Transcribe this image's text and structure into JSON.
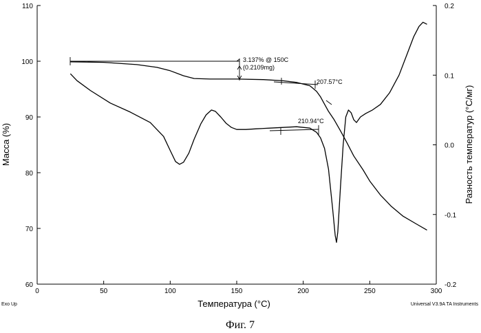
{
  "figure": {
    "caption": "Фиг. 7",
    "footer_left": "Exo Up",
    "footer_right": "Universal V3.9A TA Instruments"
  },
  "chart_data": {
    "type": "line",
    "xlabel": "Температура (°C)",
    "ylabel": "Масса (%)",
    "y2label": "Разность температур (°C/мг)",
    "xlim": [
      0,
      300
    ],
    "ylim": [
      60,
      110
    ],
    "y2lim": [
      -0.2,
      0.2
    ],
    "x_ticks": [
      "0",
      "50",
      "100",
      "150",
      "200",
      "250",
      "300"
    ],
    "y_ticks": [
      "60",
      "70",
      "80",
      "90",
      "100",
      "110"
    ],
    "y2_ticks": [
      "-0.2",
      "-0.1",
      "0.0",
      "0.1",
      "0.2"
    ],
    "grid": false,
    "series": [
      {
        "axis": "left",
        "points": [
          [
            25,
            99.9
          ],
          [
            50,
            99.8
          ],
          [
            75,
            99.4
          ],
          [
            90,
            98.9
          ],
          [
            100,
            98.3
          ],
          [
            110,
            97.4
          ],
          [
            118,
            96.9
          ],
          [
            130,
            96.8
          ],
          [
            150,
            96.8
          ],
          [
            170,
            96.7
          ],
          [
            185,
            96.5
          ],
          [
            195,
            96.2
          ],
          [
            205,
            95.6
          ],
          [
            210,
            94.6
          ],
          [
            213,
            93.6
          ],
          [
            216,
            92.3
          ],
          [
            219,
            91.0
          ],
          [
            223,
            89.6
          ],
          [
            228,
            87.5
          ],
          [
            233,
            85.3
          ],
          [
            238,
            83.0
          ],
          [
            245,
            80.5
          ],
          [
            250,
            78.5
          ],
          [
            258,
            76.0
          ],
          [
            266,
            74.0
          ],
          [
            275,
            72.2
          ],
          [
            285,
            70.8
          ],
          [
            293,
            69.7
          ]
        ]
      },
      {
        "axis": "right",
        "points": [
          [
            25,
            0.102
          ],
          [
            30,
            0.092
          ],
          [
            40,
            0.078
          ],
          [
            55,
            0.06
          ],
          [
            70,
            0.047
          ],
          [
            85,
            0.032
          ],
          [
            95,
            0.012
          ],
          [
            100,
            -0.008
          ],
          [
            104,
            -0.024
          ],
          [
            107,
            -0.028
          ],
          [
            110,
            -0.025
          ],
          [
            114,
            -0.012
          ],
          [
            118,
            0.008
          ],
          [
            123,
            0.03
          ],
          [
            127,
            0.043
          ],
          [
            131,
            0.05
          ],
          [
            134,
            0.048
          ],
          [
            138,
            0.04
          ],
          [
            142,
            0.031
          ],
          [
            146,
            0.025
          ],
          [
            150,
            0.022
          ],
          [
            157,
            0.022
          ],
          [
            165,
            0.023
          ],
          [
            175,
            0.024
          ],
          [
            185,
            0.025
          ],
          [
            195,
            0.026
          ],
          [
            205,
            0.024
          ],
          [
            210,
            0.018
          ],
          [
            213,
            0.01
          ],
          [
            216,
            -0.005
          ],
          [
            219,
            -0.035
          ],
          [
            222,
            -0.09
          ],
          [
            224,
            -0.13
          ],
          [
            225,
            -0.14
          ],
          [
            226,
            -0.125
          ],
          [
            228,
            -0.06
          ],
          [
            230,
            0.0
          ],
          [
            232,
            0.04
          ],
          [
            234,
            0.05
          ],
          [
            236,
            0.046
          ],
          [
            238,
            0.036
          ],
          [
            240,
            0.032
          ],
          [
            243,
            0.04
          ],
          [
            247,
            0.045
          ],
          [
            252,
            0.05
          ],
          [
            258,
            0.058
          ],
          [
            265,
            0.075
          ],
          [
            272,
            0.1
          ],
          [
            278,
            0.13
          ],
          [
            283,
            0.155
          ],
          [
            287,
            0.17
          ],
          [
            290,
            0.176
          ],
          [
            293,
            0.173
          ]
        ]
      }
    ],
    "annotations": [
      "3.137% @ 150C",
      "(0.2109mg)",
      "207.57°C",
      "210.94°C"
    ]
  }
}
